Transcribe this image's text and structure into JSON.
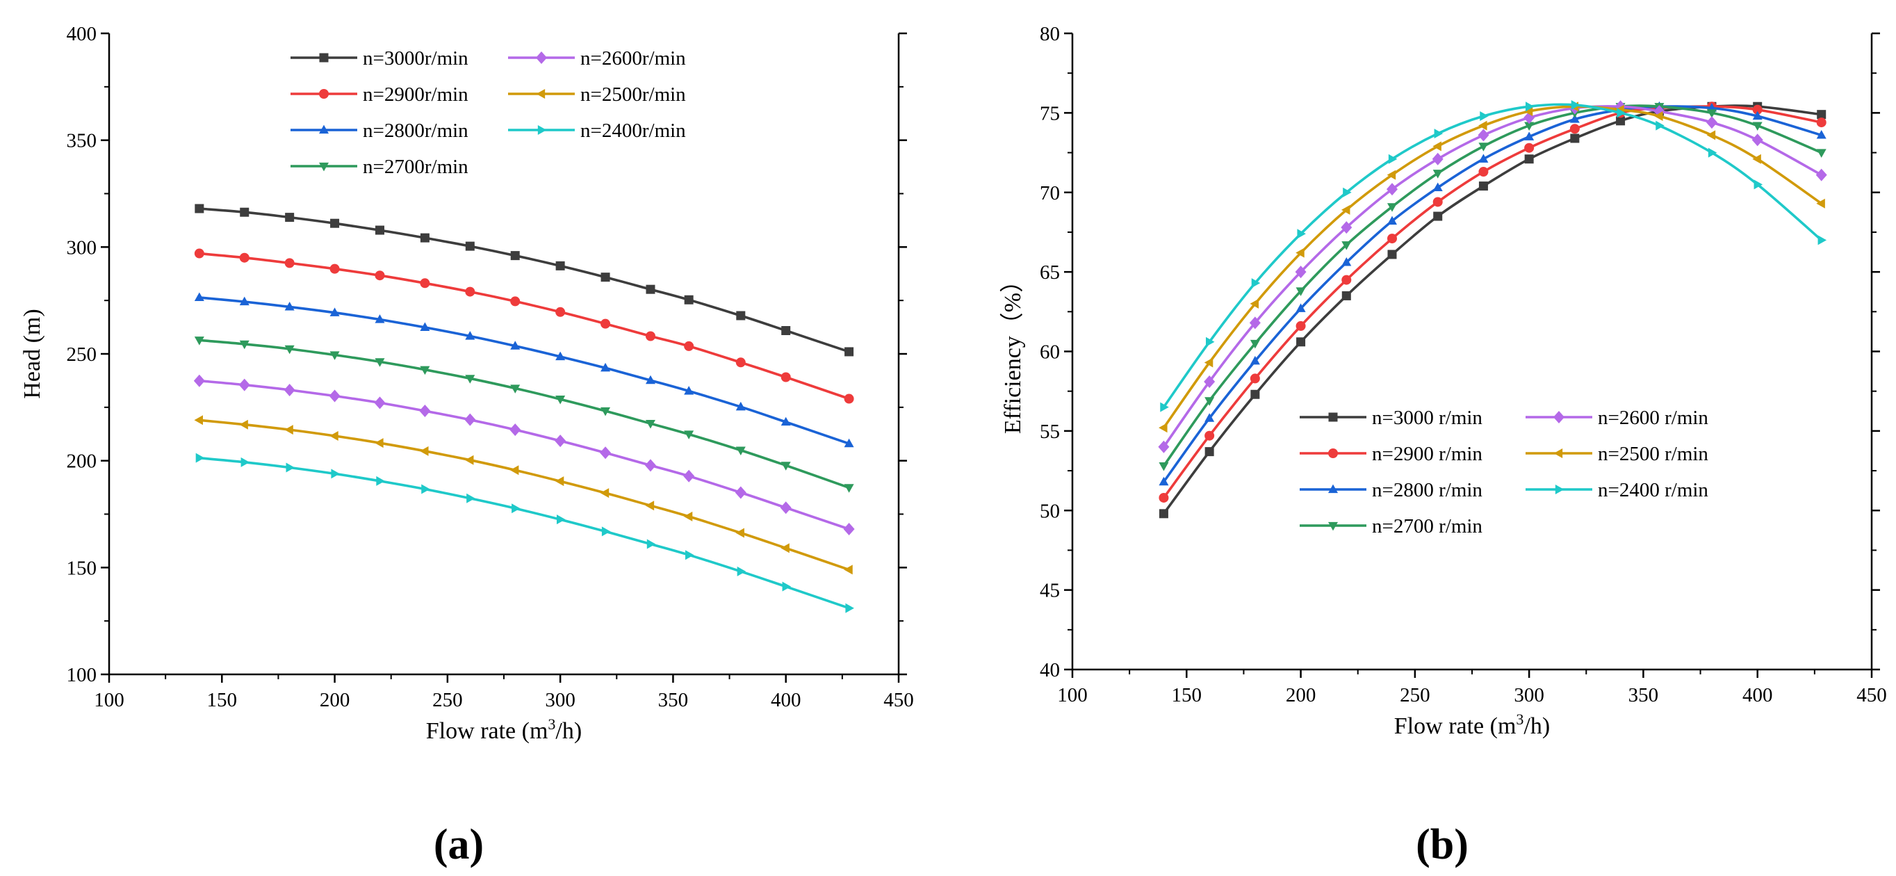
{
  "chart_data": [
    {
      "type": "line",
      "panel_label": "(a)",
      "xlabel_main": "Flow rate (m",
      "xlabel_sup": "3",
      "xlabel_tail": "/h)",
      "ylabel": "Head (m)",
      "xlim": [
        100,
        450
      ],
      "ylim": [
        100,
        400
      ],
      "x_ticks": [
        "100",
        "150",
        "200",
        "250",
        "300",
        "350",
        "400",
        "450"
      ],
      "y_ticks": [
        "100",
        "150",
        "200",
        "250",
        "300",
        "350",
        "400"
      ],
      "legend_position": "top-center",
      "x": [
        140,
        160,
        180,
        200,
        220,
        240,
        260,
        280,
        300,
        320,
        340,
        357,
        380,
        400,
        428
      ],
      "series": [
        {
          "name": "n=3000r/min",
          "color": "#3d3d3d",
          "marker": "square",
          "values": [
            318,
            316.3,
            313.9,
            311.1,
            307.9,
            304.3,
            300.4,
            296,
            291.2,
            285.9,
            280.2,
            275.3,
            267.9,
            260.9,
            251
          ]
        },
        {
          "name": "n=2900r/min",
          "color": "#ee3b3b",
          "marker": "circle",
          "values": [
            297,
            295,
            292.5,
            289.8,
            286.7,
            283.1,
            279.1,
            274.6,
            269.6,
            264.1,
            258.3,
            253.6,
            246,
            239.1,
            229
          ]
        },
        {
          "name": "n=2800r/min",
          "color": "#1a63d6",
          "marker": "triangle-up",
          "values": [
            276.4,
            274.4,
            272,
            269.3,
            266.1,
            262.4,
            258.3,
            253.7,
            248.7,
            243.4,
            237.6,
            232.6,
            225.2,
            218.1,
            208
          ]
        },
        {
          "name": "n=2700r/min",
          "color": "#2e9a5c",
          "marker": "triangle-down",
          "values": [
            256.4,
            254.6,
            252.3,
            249.5,
            246.3,
            242.6,
            238.5,
            233.9,
            228.8,
            223.3,
            217.4,
            212.4,
            204.9,
            197.8,
            187.4
          ]
        },
        {
          "name": "n=2600r/min",
          "color": "#b469e8",
          "marker": "diamond",
          "values": [
            237.4,
            235.5,
            233.1,
            230.3,
            227.1,
            223.3,
            219.2,
            214.5,
            209.3,
            203.7,
            197.8,
            192.8,
            185.1,
            178,
            168
          ]
        },
        {
          "name": "n=2500r/min",
          "color": "#d19a0a",
          "marker": "triangle-left",
          "values": [
            219,
            216.9,
            214.5,
            211.6,
            208.3,
            204.5,
            200.3,
            195.6,
            190.4,
            184.9,
            179,
            173.9,
            166.2,
            159.1,
            149
          ]
        },
        {
          "name": "n=2400r/min",
          "color": "#1fc9c9",
          "marker": "triangle-right",
          "values": [
            201.3,
            199.3,
            196.8,
            193.9,
            190.5,
            186.7,
            182.4,
            177.7,
            172.5,
            166.9,
            161,
            155.9,
            148.2,
            141.1,
            131
          ]
        }
      ]
    },
    {
      "type": "line",
      "panel_label": "(b)",
      "xlabel_main": "Flow rate (m",
      "xlabel_sup": "3",
      "xlabel_tail": "/h)",
      "ylabel": "Efficiency（%）",
      "xlim": [
        100,
        450
      ],
      "ylim": [
        40,
        80
      ],
      "x_ticks": [
        "100",
        "150",
        "200",
        "250",
        "300",
        "350",
        "400",
        "450"
      ],
      "y_ticks": [
        "40",
        "45",
        "50",
        "55",
        "60",
        "65",
        "70",
        "75",
        "80"
      ],
      "legend_position": "lower-center",
      "x": [
        140,
        160,
        180,
        200,
        220,
        240,
        260,
        280,
        300,
        320,
        340,
        357,
        380,
        400,
        428
      ],
      "series": [
        {
          "name": "n=3000 r/min",
          "color": "#3d3d3d",
          "marker": "square",
          "values": [
            49.8,
            53.7,
            57.3,
            60.6,
            63.5,
            66.1,
            68.5,
            70.4,
            72.1,
            73.4,
            74.5,
            75.1,
            75.4,
            75.4,
            74.9
          ]
        },
        {
          "name": "n=2900 r/min",
          "color": "#ee3b3b",
          "marker": "circle",
          "values": [
            50.8,
            54.7,
            58.3,
            61.6,
            64.5,
            67.1,
            69.4,
            71.3,
            72.8,
            74,
            75,
            75.3,
            75.4,
            75.2,
            74.4
          ]
        },
        {
          "name": "n=2800 r/min",
          "color": "#1a63d6",
          "marker": "triangle-up",
          "values": [
            51.8,
            55.8,
            59.4,
            62.7,
            65.6,
            68.2,
            70.3,
            72.1,
            73.5,
            74.6,
            75.2,
            75.4,
            75.3,
            74.8,
            73.6
          ]
        },
        {
          "name": "n=2700 r/min",
          "color": "#2e9a5c",
          "marker": "triangle-down",
          "values": [
            52.8,
            56.9,
            60.5,
            63.8,
            66.7,
            69.1,
            71.2,
            72.9,
            74.2,
            75,
            75.4,
            75.4,
            75,
            74.2,
            72.5
          ]
        },
        {
          "name": "n=2600 r/min",
          "color": "#b469e8",
          "marker": "diamond",
          "values": [
            54,
            58.1,
            61.8,
            65,
            67.8,
            70.2,
            72.1,
            73.6,
            74.7,
            75.3,
            75.4,
            75.1,
            74.4,
            73.3,
            71.1
          ]
        },
        {
          "name": "n=2500 r/min",
          "color": "#d19a0a",
          "marker": "triangle-left",
          "values": [
            55.2,
            59.3,
            63,
            66.2,
            68.9,
            71.1,
            72.9,
            74.2,
            75.1,
            75.4,
            75.2,
            74.8,
            73.6,
            72.1,
            69.3
          ]
        },
        {
          "name": "n=2400 r/min",
          "color": "#1fc9c9",
          "marker": "triangle-right",
          "values": [
            56.5,
            60.6,
            64.3,
            67.4,
            70,
            72.1,
            73.7,
            74.8,
            75.4,
            75.5,
            75,
            74.2,
            72.5,
            70.5,
            67
          ]
        }
      ]
    }
  ]
}
